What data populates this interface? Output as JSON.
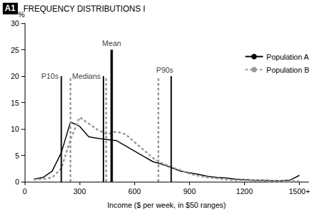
{
  "chart_data": {
    "type": "line",
    "panel": "A1",
    "title": "FREQUENCY DISTRIBUTIONS I",
    "y_label": "%",
    "x_label": "Income ($ per week, in $50 ranges)",
    "x": [
      50,
      100,
      150,
      200,
      250,
      300,
      350,
      400,
      450,
      500,
      550,
      600,
      650,
      700,
      750,
      800,
      850,
      900,
      950,
      1000,
      1050,
      1100,
      1150,
      1200,
      1250,
      1300,
      1350,
      1400,
      1450,
      1500
    ],
    "series": [
      {
        "name": "Population A",
        "color": "#000000",
        "line_style": "solid",
        "values": [
          0.5,
          0.8,
          2,
          5.5,
          11.3,
          10.5,
          8.5,
          8.2,
          8,
          7.8,
          6.8,
          5.8,
          4.8,
          3.8,
          3.3,
          2.7,
          2,
          1.7,
          1.4,
          1,
          0.8,
          0.7,
          0.5,
          0.4,
          0.3,
          0.3,
          0.2,
          0.2,
          0.3,
          1.2
        ]
      },
      {
        "name": "Population B",
        "color": "#999999",
        "line_style": "dotted",
        "values": [
          0.4,
          0.5,
          0.8,
          2.5,
          8,
          12.2,
          11,
          9.8,
          9,
          9.5,
          9,
          7.5,
          6,
          4.5,
          3.5,
          2.8,
          2.2,
          1.5,
          1.1,
          0.8,
          0.6,
          0.4,
          0.3,
          0.3,
          0.2,
          0.2,
          0.1,
          0.1,
          0.1,
          0.1
        ]
      }
    ],
    "annotations": [
      {
        "text": "P10s",
        "lines": [
          {
            "series": "Population A",
            "x": 200,
            "top": 20
          },
          {
            "series": "Population B",
            "x": 250,
            "top": 20
          }
        ]
      },
      {
        "text": "Medians",
        "lines": [
          {
            "series": "Population A",
            "x": 430,
            "top": 20
          },
          {
            "series": "Population B",
            "x": 445,
            "top": 20
          }
        ]
      },
      {
        "text": "Mean",
        "lines": [
          {
            "x": 475,
            "top": 25,
            "color": "#000000",
            "line_style": "bold"
          }
        ]
      },
      {
        "text": "P90s",
        "lines": [
          {
            "series": "Population B",
            "x": 730,
            "top": 20
          },
          {
            "series": "Population A",
            "x": 800,
            "top": 20
          }
        ]
      }
    ],
    "xlim": [
      0,
      1550
    ],
    "xticks": [
      0,
      300,
      600,
      900,
      1200,
      {
        "value": 1500,
        "label": "1500+"
      }
    ],
    "ylim": [
      0,
      30
    ],
    "yticks": [
      0,
      5,
      10,
      15,
      20,
      25,
      30
    ],
    "grid": false,
    "legend": "top right"
  }
}
